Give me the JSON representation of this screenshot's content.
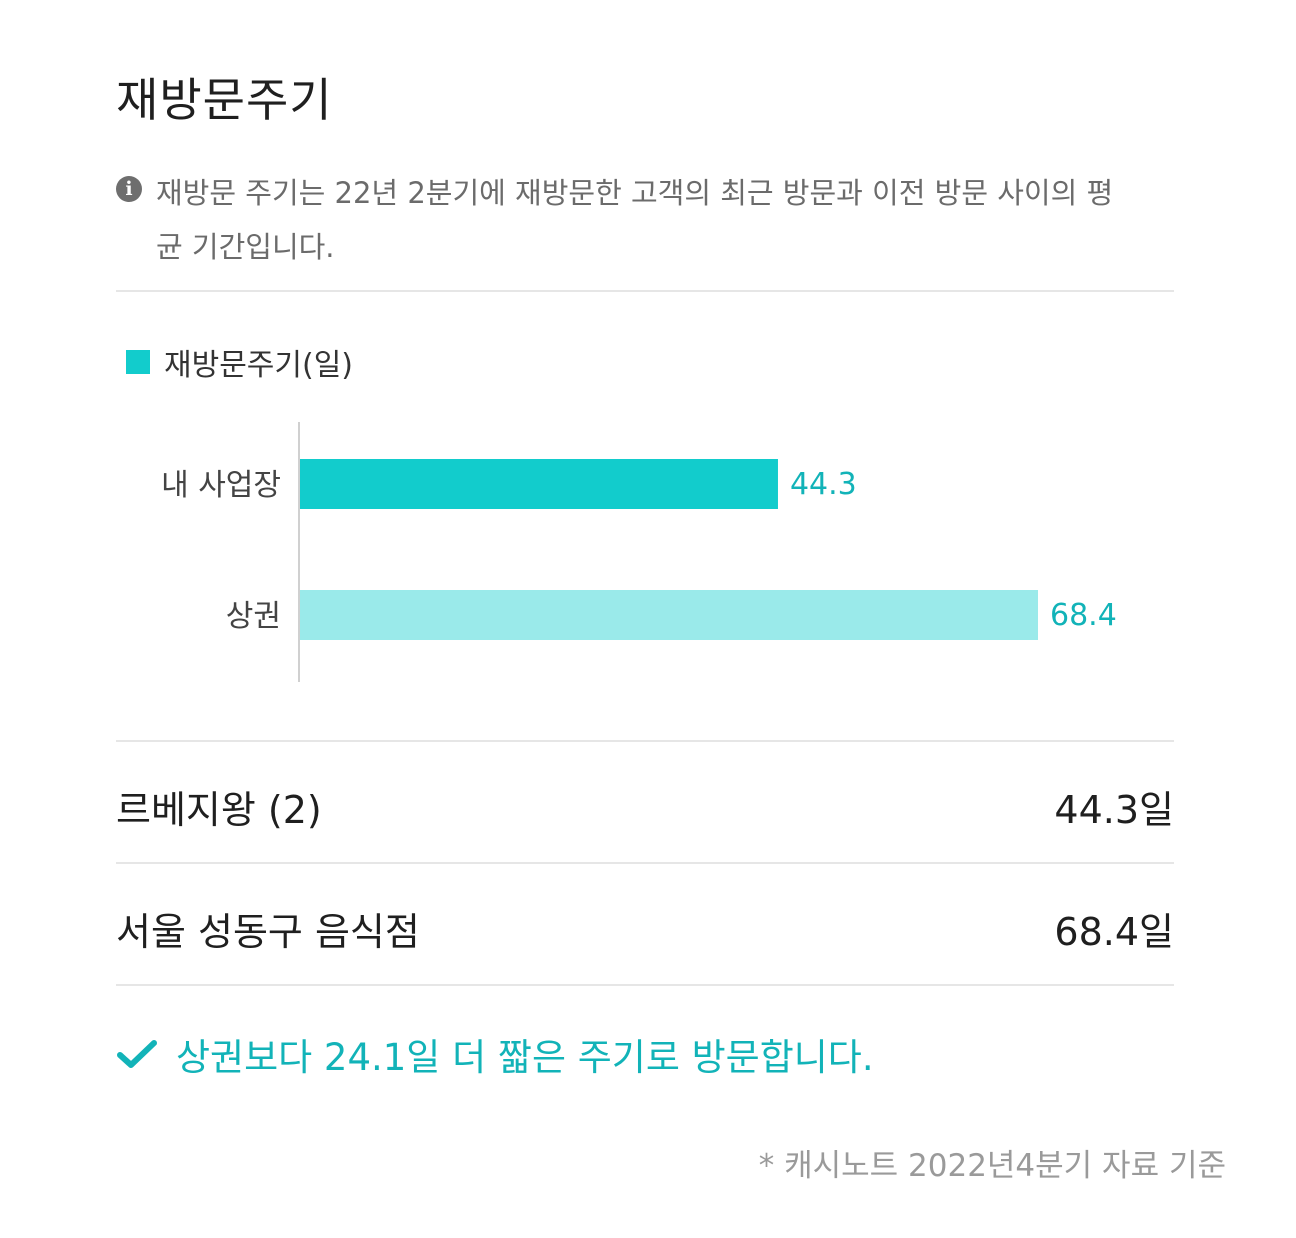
{
  "title": "재방문주기",
  "note": {
    "icon": "info-icon",
    "text": "재방문 주기는 22년 2분기에 재방문한 고객의 최근 방문과 이전 방문 사이의 평균 기간입니다."
  },
  "colors": {
    "accent": "#12cccc",
    "accent_light": "#9aeaea",
    "value_text": "#12b3b8"
  },
  "chart_data": {
    "type": "bar",
    "orientation": "horizontal",
    "categories": [
      "내 사업장",
      "상권"
    ],
    "series": [
      {
        "name": "재방문주기(일)",
        "values": [
          44.3,
          68.4
        ],
        "colors": [
          "#12cccc",
          "#9aeaea"
        ]
      }
    ],
    "data_labels": [
      "44.3",
      "68.4"
    ],
    "xlim": [
      0,
      100
    ],
    "grid": false,
    "legend_position": "top-left"
  },
  "comparison": [
    {
      "name": "르베지왕 (2)",
      "value": "44.3일"
    },
    {
      "name": "서울 성동구 음식점",
      "value": "68.4일"
    }
  ],
  "summary": {
    "icon": "check-icon",
    "text": "상권보다 24.1일 더 짧은 주기로 방문합니다."
  },
  "footnote": "* 캐시노트 2022년4분기 자료 기준"
}
